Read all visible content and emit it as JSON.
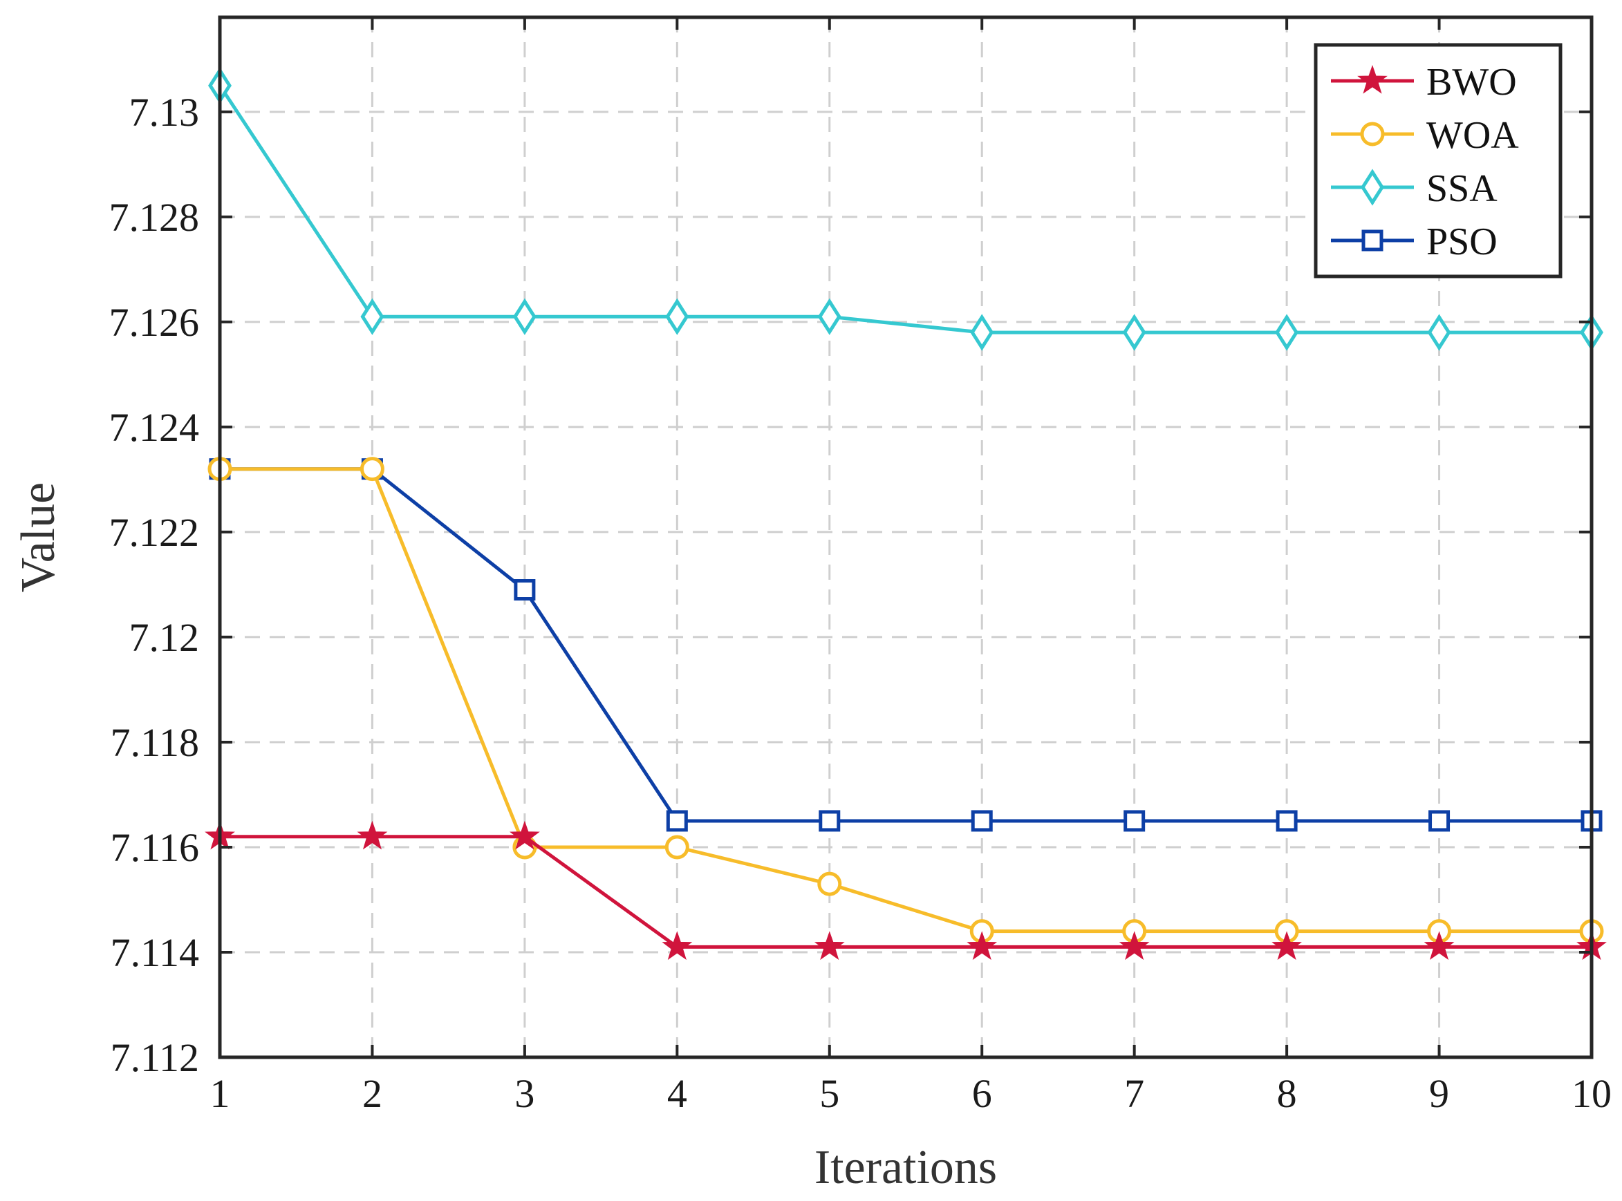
{
  "chart_data": {
    "type": "line",
    "xlabel": "Iterations",
    "ylabel": "Value",
    "x": [
      1,
      2,
      3,
      4,
      5,
      6,
      7,
      8,
      9,
      10
    ],
    "xlim": [
      1,
      10
    ],
    "ylim": [
      7.112,
      7.1318
    ],
    "xticks": [
      1,
      2,
      3,
      4,
      5,
      6,
      7,
      8,
      9,
      10
    ],
    "xtick_labels": [
      "1",
      "2",
      "3",
      "4",
      "5",
      "6",
      "7",
      "8",
      "9",
      "10"
    ],
    "yticks": [
      7.112,
      7.114,
      7.116,
      7.118,
      7.12,
      7.122,
      7.124,
      7.126,
      7.128,
      7.13
    ],
    "ytick_labels": [
      "7.112",
      "7.114",
      "7.116",
      "7.118",
      "7.12",
      "7.122",
      "7.124",
      "7.126",
      "7.128",
      "7.13"
    ],
    "grid": true,
    "legend_position": "top-right",
    "series": [
      {
        "name": "BWO",
        "color": "#d0143c",
        "marker": "star",
        "values": [
          7.1162,
          7.1162,
          7.1162,
          7.1141,
          7.1141,
          7.1141,
          7.1141,
          7.1141,
          7.1141,
          7.1141
        ]
      },
      {
        "name": "WOA",
        "color": "#f7bc2a",
        "marker": "circle",
        "values": [
          7.1232,
          7.1232,
          7.116,
          7.116,
          7.1153,
          7.1144,
          7.1144,
          7.1144,
          7.1144,
          7.1144
        ]
      },
      {
        "name": "SSA",
        "color": "#35c8d0",
        "marker": "diamond",
        "values": [
          7.1305,
          7.1261,
          7.1261,
          7.1261,
          7.1261,
          7.1258,
          7.1258,
          7.1258,
          7.1258,
          7.1258
        ]
      },
      {
        "name": "PSO",
        "color": "#0d3fa6",
        "marker": "square",
        "values": [
          7.1232,
          7.1232,
          7.1209,
          7.1165,
          7.1165,
          7.1165,
          7.1165,
          7.1165,
          7.1165,
          7.1165
        ]
      }
    ]
  }
}
